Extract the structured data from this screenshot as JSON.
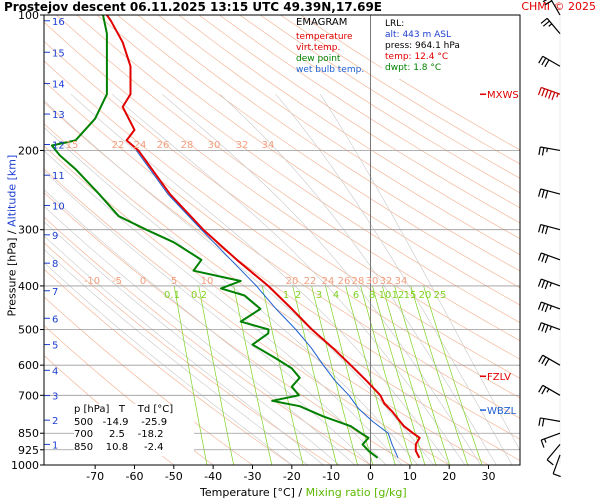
{
  "header": {
    "title": "Prostejov  descent  06.11.2025 13:15 UTC  49.39N,17.69E",
    "credit": "CHMI © 2025"
  },
  "colors": {
    "temperature": "#e00000",
    "dew_point": "#008000",
    "virt_temp": "#e00000",
    "wet_bulb": "#1e5fd0",
    "dry_adiabat": "#f4b89a",
    "moist_adiabat": "#c8c8c8",
    "mixing_ratio": "#7ed321",
    "isobar": "#9a9a9a"
  },
  "legend": {
    "header": "EMAGRAM",
    "items": [
      {
        "label": "temperature",
        "color": "#e00000"
      },
      {
        "label": "virt.temp.",
        "color": "#e00000"
      },
      {
        "label": "dew point",
        "color": "#008000"
      },
      {
        "label": "wet bulb temp.",
        "color": "#1e5fd0"
      }
    ]
  },
  "lrl": {
    "header": "LRL:",
    "alt": "alt: 443 m ASL",
    "press": "press: 964.1 hPa",
    "temp": "temp: 12.4 °C",
    "dwpt": "dwpt: 1.8 °C"
  },
  "levels_table": {
    "header": "p [hPa]   T    Td [°C]",
    "rows": [
      "500   -14.9    -25.9",
      "700     2.5    -18.2",
      "850    10.8     -2.4"
    ]
  },
  "axes": {
    "xlabel_part1": "Temperature [°C]  /",
    "xlabel_part2": "Mixing ratio [g/kg]",
    "ylabel_part1": "Pressure [hPa]  /",
    "ylabel_part2": "Altitude [km]"
  },
  "markers": {
    "mxws": "MXWS",
    "fzlv": "FZLV",
    "wbzl": "WBZL"
  },
  "chart_data": {
    "type": "line",
    "title": "EMAGRAM",
    "xlabel": "Temperature [°C] / Mixing ratio [g/kg]",
    "ylabel": "Pressure [hPa] / Altitude [km]",
    "xlim": [
      -83,
      38
    ],
    "ylim": [
      1000,
      100
    ],
    "y_scale": "log",
    "x_ticks": [
      -70,
      -60,
      -50,
      -40,
      -30,
      -20,
      -10,
      0,
      10,
      20,
      30
    ],
    "y_ticks": [
      100,
      200,
      300,
      400,
      500,
      600,
      700,
      850,
      925,
      1000
    ],
    "altitude_ticks_km": [
      1,
      2,
      3,
      4,
      5,
      6,
      7,
      8,
      9,
      10,
      11,
      12,
      13,
      14,
      15,
      16
    ],
    "altitude_tick_pressures_hPa": [
      900,
      795,
      701,
      616,
      540,
      472,
      410,
      356,
      308,
      265,
      227,
      194,
      166,
      142,
      121,
      103
    ],
    "dry_adiabat_labels": [
      "15",
      "22",
      "24",
      "26",
      "28",
      "30",
      "32",
      "34"
    ],
    "moist_labels": [
      "-10",
      "-5",
      "0",
      "5",
      "10",
      "20",
      "22",
      "24",
      "26",
      "28",
      "30",
      "32",
      "34"
    ],
    "mixing_ratio_labels": [
      "0.1",
      "0.2",
      "1",
      "2",
      "3",
      "4",
      "6",
      "8",
      "10",
      "12",
      "15",
      "20",
      "25"
    ],
    "series": [
      {
        "name": "temperature",
        "values": [
          [
            964,
            12.4
          ],
          [
            930,
            11.5
          ],
          [
            900,
            11.5
          ],
          [
            870,
            12.5
          ],
          [
            850,
            10.8
          ],
          [
            820,
            8.5
          ],
          [
            790,
            7
          ],
          [
            760,
            5.5
          ],
          [
            730,
            3.5
          ],
          [
            700,
            2.5
          ],
          [
            650,
            -1
          ],
          [
            600,
            -5
          ],
          [
            550,
            -9.5
          ],
          [
            500,
            -14.9
          ],
          [
            450,
            -20
          ],
          [
            400,
            -26
          ],
          [
            350,
            -34
          ],
          [
            300,
            -42.5
          ],
          [
            250,
            -51
          ],
          [
            200,
            -59
          ],
          [
            190,
            -62
          ],
          [
            180,
            -60
          ],
          [
            160,
            -63
          ],
          [
            150,
            -61
          ],
          [
            130,
            -61
          ],
          [
            115,
            -63
          ],
          [
            103,
            -66
          ],
          [
            100,
            -67
          ]
        ]
      },
      {
        "name": "wet bulb temp.",
        "values": [
          [
            964,
            7
          ],
          [
            900,
            5.5
          ],
          [
            850,
            4.5
          ],
          [
            800,
            0.5
          ],
          [
            750,
            -3
          ],
          [
            700,
            -5.5
          ],
          [
            650,
            -9
          ],
          [
            600,
            -12
          ],
          [
            550,
            -15
          ],
          [
            500,
            -19
          ],
          [
            450,
            -24
          ],
          [
            400,
            -29
          ],
          [
            350,
            -35.5
          ],
          [
            300,
            -43
          ],
          [
            250,
            -51.5
          ],
          [
            200,
            -59.5
          ]
        ]
      },
      {
        "name": "dew point",
        "values": [
          [
            964,
            1.8
          ],
          [
            930,
            -0.5
          ],
          [
            900,
            -2
          ],
          [
            870,
            -0.5
          ],
          [
            850,
            -2.4
          ],
          [
            820,
            -5
          ],
          [
            780,
            -12
          ],
          [
            740,
            -18
          ],
          [
            720,
            -25
          ],
          [
            700,
            -18.2
          ],
          [
            670,
            -20
          ],
          [
            640,
            -18
          ],
          [
            610,
            -20
          ],
          [
            580,
            -24
          ],
          [
            540,
            -30
          ],
          [
            510,
            -26
          ],
          [
            500,
            -25.9
          ],
          [
            480,
            -33
          ],
          [
            450,
            -28
          ],
          [
            420,
            -32
          ],
          [
            405,
            -38
          ],
          [
            390,
            -33
          ],
          [
            370,
            -45
          ],
          [
            350,
            -43
          ],
          [
            320,
            -50
          ],
          [
            300,
            -57
          ],
          [
            280,
            -64
          ],
          [
            250,
            -69
          ],
          [
            220,
            -75
          ],
          [
            205,
            -79
          ],
          [
            195,
            -81
          ],
          [
            190,
            -75
          ],
          [
            170,
            -70
          ],
          [
            150,
            -67
          ],
          [
            130,
            -67
          ],
          [
            110,
            -67
          ],
          [
            100,
            -68
          ]
        ]
      }
    ],
    "wind_barbs": [
      {
        "p": 950,
        "dir_deg": 200,
        "kt": 10
      },
      {
        "p": 900,
        "dir_deg": 220,
        "kt": 10
      },
      {
        "p": 850,
        "dir_deg": 250,
        "kt": 15
      },
      {
        "p": 800,
        "dir_deg": 280,
        "kt": 20
      },
      {
        "p": 700,
        "dir_deg": 300,
        "kt": 25
      },
      {
        "p": 600,
        "dir_deg": 300,
        "kt": 30
      },
      {
        "p": 500,
        "dir_deg": 290,
        "kt": 35
      },
      {
        "p": 450,
        "dir_deg": 290,
        "kt": 35
      },
      {
        "p": 400,
        "dir_deg": 290,
        "kt": 35
      },
      {
        "p": 350,
        "dir_deg": 290,
        "kt": 30
      },
      {
        "p": 300,
        "dir_deg": 285,
        "kt": 30
      },
      {
        "p": 250,
        "dir_deg": 285,
        "kt": 30
      },
      {
        "p": 200,
        "dir_deg": 280,
        "kt": 25
      },
      {
        "p": 150,
        "dir_deg": 290,
        "kt": 55
      },
      {
        "p": 130,
        "dir_deg": 300,
        "kt": 30
      },
      {
        "p": 110,
        "dir_deg": 320,
        "kt": 25
      },
      {
        "p": 100,
        "dir_deg": 330,
        "kt": 20
      }
    ],
    "markers": [
      {
        "label": "MXWS",
        "p": 150
      },
      {
        "label": "FZLV",
        "p": 635
      },
      {
        "label": "WBZL",
        "p": 755
      }
    ]
  }
}
